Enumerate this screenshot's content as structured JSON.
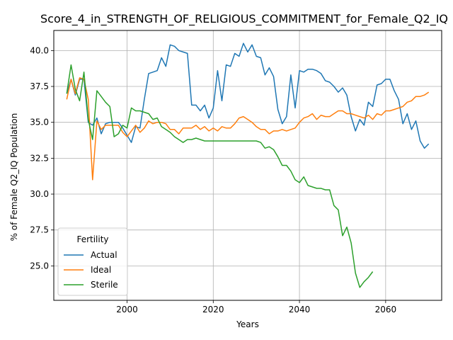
{
  "chart_data": {
    "type": "line",
    "title": "Score_4_in_STRENGTH_OF_RELIGIOUS_COMMITMENT_for_Female_Q2_IQ",
    "xlabel": "Years",
    "ylabel": "% of Female Q2_IQ Population",
    "xlim": [
      1983,
      2073
    ],
    "ylim": [
      22.6,
      41.4
    ],
    "xticks": [
      2000,
      2020,
      2040,
      2060
    ],
    "yticks": [
      25.0,
      27.5,
      30.0,
      32.5,
      35.0,
      37.5,
      40.0
    ],
    "grid": true,
    "legend": {
      "title": "Fertility",
      "position": "lower-left"
    },
    "series": [
      {
        "name": "Actual",
        "color": "#1f77b4",
        "x": [
          1986,
          1987,
          1988,
          1989,
          1990,
          1991,
          1992,
          1993,
          1994,
          1995,
          1996,
          1997,
          1998,
          1999,
          2000,
          2001,
          2002,
          2003,
          2004,
          2005,
          2006,
          2007,
          2008,
          2009,
          2010,
          2011,
          2012,
          2013,
          2014,
          2015,
          2016,
          2017,
          2018,
          2019,
          2020,
          2021,
          2022,
          2023,
          2024,
          2025,
          2026,
          2027,
          2028,
          2029,
          2030,
          2031,
          2032,
          2033,
          2034,
          2035,
          2036,
          2037,
          2038,
          2039,
          2040,
          2041,
          2042,
          2043,
          2044,
          2045,
          2046,
          2047,
          2048,
          2049,
          2050,
          2051,
          2052,
          2053,
          2054,
          2055,
          2056,
          2057,
          2058,
          2059,
          2060,
          2061,
          2062,
          2063,
          2064,
          2065,
          2066,
          2067,
          2068,
          2069,
          2070
        ],
        "values": [
          37.0,
          38.0,
          36.9,
          38.0,
          38.0,
          35.0,
          34.8,
          35.3,
          34.2,
          34.9,
          35.0,
          35.0,
          35.0,
          34.6,
          34.1,
          33.6,
          34.7,
          34.6,
          36.6,
          38.4,
          38.5,
          38.6,
          39.5,
          38.9,
          40.4,
          40.3,
          40.0,
          39.9,
          39.8,
          36.2,
          36.2,
          35.8,
          36.2,
          35.3,
          36.0,
          38.6,
          36.5,
          39.0,
          38.9,
          39.8,
          39.6,
          40.5,
          39.9,
          40.4,
          39.6,
          39.5,
          38.3,
          38.8,
          38.2,
          35.9,
          34.9,
          35.4,
          38.3,
          36.0,
          38.6,
          38.5,
          38.7,
          38.7,
          38.6,
          38.4,
          37.9,
          37.8,
          37.5,
          37.1,
          37.4,
          36.9,
          35.4,
          34.4,
          35.2,
          34.8,
          36.4,
          36.1,
          37.6,
          37.7,
          38.0,
          38.0,
          37.2,
          36.6,
          34.9,
          35.6,
          34.5,
          35.1,
          33.7,
          33.2,
          33.5
        ]
      },
      {
        "name": "Ideal",
        "color": "#ff7f0e",
        "x": [
          1986,
          1987,
          1988,
          1989,
          1990,
          1991,
          1992,
          1993,
          1994,
          1995,
          1996,
          1997,
          1998,
          1999,
          2000,
          2001,
          2002,
          2003,
          2004,
          2005,
          2006,
          2007,
          2008,
          2009,
          2010,
          2011,
          2012,
          2013,
          2014,
          2015,
          2016,
          2017,
          2018,
          2019,
          2020,
          2021,
          2022,
          2023,
          2024,
          2025,
          2026,
          2027,
          2028,
          2029,
          2030,
          2031,
          2032,
          2033,
          2034,
          2035,
          2036,
          2037,
          2038,
          2039,
          2040,
          2041,
          2042,
          2043,
          2044,
          2045,
          2046,
          2047,
          2048,
          2049,
          2050,
          2051,
          2052,
          2053,
          2054,
          2055,
          2056,
          2057,
          2058,
          2059,
          2060,
          2061,
          2062,
          2063,
          2064,
          2065,
          2066,
          2067,
          2068,
          2069,
          2070
        ],
        "values": [
          36.6,
          38.0,
          37.0,
          38.1,
          38.0,
          36.6,
          31.0,
          35.1,
          34.5,
          34.8,
          34.8,
          34.8,
          34.8,
          34.3,
          34.0,
          34.4,
          34.8,
          34.3,
          34.6,
          35.1,
          34.9,
          35.0,
          35.0,
          34.9,
          34.5,
          34.5,
          34.2,
          34.6,
          34.6,
          34.6,
          34.8,
          34.5,
          34.7,
          34.4,
          34.6,
          34.4,
          34.7,
          34.6,
          34.6,
          34.9,
          35.3,
          35.4,
          35.2,
          35.0,
          34.7,
          34.5,
          34.5,
          34.2,
          34.4,
          34.4,
          34.5,
          34.4,
          34.5,
          34.6,
          35.0,
          35.3,
          35.4,
          35.6,
          35.2,
          35.5,
          35.4,
          35.4,
          35.6,
          35.8,
          35.8,
          35.6,
          35.6,
          35.5,
          35.4,
          35.3,
          35.5,
          35.2,
          35.6,
          35.5,
          35.8,
          35.8,
          35.9,
          36.0,
          36.1,
          36.4,
          36.5,
          36.8,
          36.8,
          36.9,
          37.1
        ]
      },
      {
        "name": "Sterile",
        "color": "#2ca02c",
        "x": [
          1986,
          1987,
          1988,
          1989,
          1990,
          1991,
          1992,
          1993,
          1994,
          1995,
          1996,
          1997,
          1998,
          1999,
          2000,
          2001,
          2002,
          2003,
          2004,
          2005,
          2006,
          2007,
          2008,
          2009,
          2010,
          2011,
          2012,
          2013,
          2014,
          2015,
          2016,
          2017,
          2018,
          2019,
          2020,
          2021,
          2022,
          2023,
          2024,
          2025,
          2026,
          2027,
          2028,
          2029,
          2030,
          2031,
          2032,
          2033,
          2034,
          2035,
          2036,
          2037,
          2038,
          2039,
          2040,
          2041,
          2042,
          2043,
          2044,
          2045,
          2046,
          2047,
          2048,
          2049,
          2050,
          2051,
          2052,
          2053,
          2054,
          2055,
          2056,
          2057
        ],
        "values": [
          37.0,
          39.0,
          37.3,
          36.5,
          38.5,
          35.2,
          33.8,
          37.2,
          36.8,
          36.4,
          36.1,
          34.0,
          34.2,
          34.8,
          34.6,
          36.0,
          35.8,
          35.8,
          35.7,
          35.6,
          35.2,
          35.3,
          34.7,
          34.5,
          34.3,
          34.0,
          33.8,
          33.6,
          33.8,
          33.8,
          33.9,
          33.8,
          33.7,
          33.7,
          33.7,
          33.7,
          33.7,
          33.7,
          33.7,
          33.7,
          33.7,
          33.7,
          33.7,
          33.7,
          33.7,
          33.6,
          33.2,
          33.3,
          33.1,
          32.6,
          32.0,
          32.0,
          31.6,
          31.0,
          30.8,
          31.2,
          30.6,
          30.5,
          30.4,
          30.4,
          30.3,
          30.3,
          29.2,
          28.9,
          27.1,
          27.7,
          26.6,
          24.5,
          23.5,
          23.9,
          24.2,
          24.6
        ]
      }
    ]
  }
}
